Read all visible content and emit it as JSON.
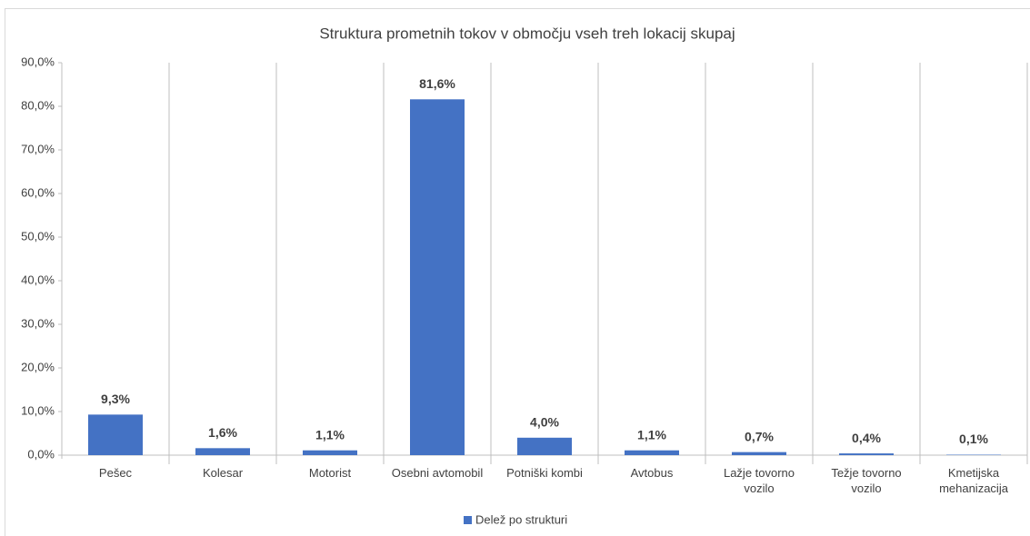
{
  "chart_data": {
    "type": "bar",
    "title": "Struktura prometnih tokov v območju vseh treh lokacij skupaj",
    "categories": [
      "Pešec",
      "Kolesar",
      "Motorist",
      "Osebni avtomobil",
      "Potniški kombi",
      "Avtobus",
      "Lažje tovorno vozilo",
      "Težje tovorno vozilo",
      "Kmetijska mehanizacija"
    ],
    "series": [
      {
        "name": "Delež po strukturi",
        "color": "#4472c4",
        "values": [
          9.3,
          1.6,
          1.1,
          81.6,
          4.0,
          1.1,
          0.7,
          0.4,
          0.1
        ],
        "value_labels": [
          "9,3%",
          "1,6%",
          "1,1%",
          "81,6%",
          "4,0%",
          "1,1%",
          "0,7%",
          "0,4%",
          "0,1%"
        ]
      }
    ],
    "ylim": [
      0,
      90
    ],
    "yticks": [
      {
        "value": 0,
        "label": "0,0%"
      },
      {
        "value": 10,
        "label": "10,0%"
      },
      {
        "value": 20,
        "label": "20,0%"
      },
      {
        "value": 30,
        "label": "30,0%"
      },
      {
        "value": 40,
        "label": "40,0%"
      },
      {
        "value": 50,
        "label": "50,0%"
      },
      {
        "value": 60,
        "label": "60,0%"
      },
      {
        "value": 70,
        "label": "70,0%"
      },
      {
        "value": 80,
        "label": "80,0%"
      },
      {
        "value": 90,
        "label": "90,0%"
      }
    ],
    "legend": "bottom"
  }
}
